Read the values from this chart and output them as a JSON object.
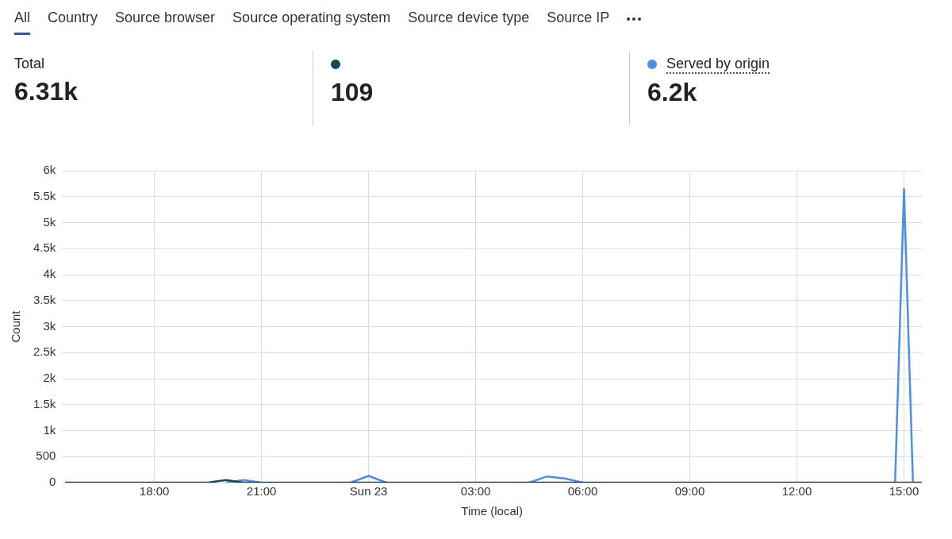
{
  "chart_data": {
    "type": "line",
    "xlabel": "Time (local)",
    "ylabel": "Count",
    "annotations": [
      "All",
      "Country",
      "Source browser",
      "Source operating system",
      "Source device type",
      "Source IP",
      "Total",
      "6.31k",
      "109",
      "6.2k"
    ],
    "x": [
      "--06-22T15:30",
      "--06-22T16:00",
      "--06-22T16:30",
      "--06-22T17:00",
      "--06-22T17:30",
      "--06-22T18:00",
      "--06-22T18:30",
      "--06-22T19:00",
      "--06-22T19:30",
      "--06-22T20:00",
      "--06-22T20:30",
      "--06-22T21:00",
      "--06-22T21:30",
      "--06-22T22:00",
      "--06-22T22:30",
      "--06-22T23:00",
      "--06-22T23:30",
      "--06-23T00:00",
      "--06-23T00:30",
      "--06-23T01:00",
      "--06-23T01:30",
      "--06-23T02:00",
      "--06-23T02:30",
      "--06-23T03:00",
      "--06-23T03:30",
      "--06-23T04:00",
      "--06-23T04:30",
      "--06-23T05:00",
      "--06-23T05:30",
      "--06-23T06:00",
      "--06-23T06:30",
      "--06-23T07:00",
      "--06-23T07:30",
      "--06-23T08:00",
      "--06-23T08:30",
      "--06-23T09:00",
      "--06-23T09:30",
      "--06-23T10:00",
      "--06-23T10:30",
      "--06-23T11:00",
      "--06-23T11:30",
      "--06-23T12:00",
      "--06-23T12:30",
      "--06-23T13:00",
      "--06-23T13:30",
      "--06-23T14:00",
      "--06-23T14:30",
      "--06-23T14:45",
      "--06-23T15:00",
      "--06-23T15:15",
      "--06-23T15:30"
    ],
    "series": [
      {
        "color": "#0f4a58",
        "values": [
          0,
          0,
          0,
          0,
          0,
          0,
          0,
          0,
          0,
          50,
          0,
          0,
          0,
          0,
          0,
          0,
          0,
          0,
          0,
          0,
          0,
          0,
          0,
          0,
          0,
          0,
          0,
          0,
          0,
          0,
          0,
          0,
          0,
          0,
          0,
          0,
          0,
          0,
          0,
          0,
          0,
          0,
          0,
          0,
          0,
          0,
          0,
          0,
          0,
          0,
          0
        ]
      },
      {
        "name": "Served by origin",
        "color": "#4a8fe8",
        "values": [
          null,
          null,
          null,
          null,
          null,
          null,
          null,
          null,
          null,
          0,
          50,
          0,
          null,
          null,
          null,
          null,
          0,
          130,
          0,
          null,
          null,
          null,
          null,
          null,
          null,
          null,
          0,
          120,
          80,
          0,
          null,
          null,
          null,
          null,
          null,
          null,
          null,
          null,
          null,
          null,
          null,
          null,
          null,
          null,
          null,
          null,
          null,
          0,
          5650,
          0,
          null
        ]
      }
    ],
    "xlim": [
      "--06-22T15:25",
      "--06-23T15:30"
    ],
    "xticks": [
      {
        "value": "--06-22T18:00",
        "label": "18:00"
      },
      {
        "value": "--06-22T21:00",
        "label": "21:00"
      },
      {
        "value": "--06-23T00:00",
        "label": "Sun 23"
      },
      {
        "value": "--06-23T03:00",
        "label": "03:00"
      },
      {
        "value": "--06-23T06:00",
        "label": "06:00"
      },
      {
        "value": "--06-23T09:00",
        "label": "09:00"
      },
      {
        "value": "--06-23T12:00",
        "label": "12:00"
      },
      {
        "value": "--06-23T15:00",
        "label": "15:00"
      }
    ],
    "ylim": [
      0,
      6000
    ],
    "yticks": [
      0,
      500,
      {
        "value": 1000,
        "label": "1k"
      },
      {
        "value": 1500,
        "label": "1.5k"
      },
      {
        "value": 2000,
        "label": "2k"
      },
      {
        "value": 2500,
        "label": "2.5k"
      },
      {
        "value": 3000,
        "label": "3k"
      },
      {
        "value": 3500,
        "label": "3.5k"
      },
      {
        "value": 4000,
        "label": "4k"
      },
      {
        "value": 4500,
        "label": "4.5k"
      },
      {
        "value": 5000,
        "label": "5k"
      },
      {
        "value": 5500,
        "label": "5.5k"
      },
      {
        "value": 6000,
        "label": "6k"
      }
    ],
    "grid": true,
    "legend": "top",
    "marker": "none",
    "line_style": "solid"
  }
}
